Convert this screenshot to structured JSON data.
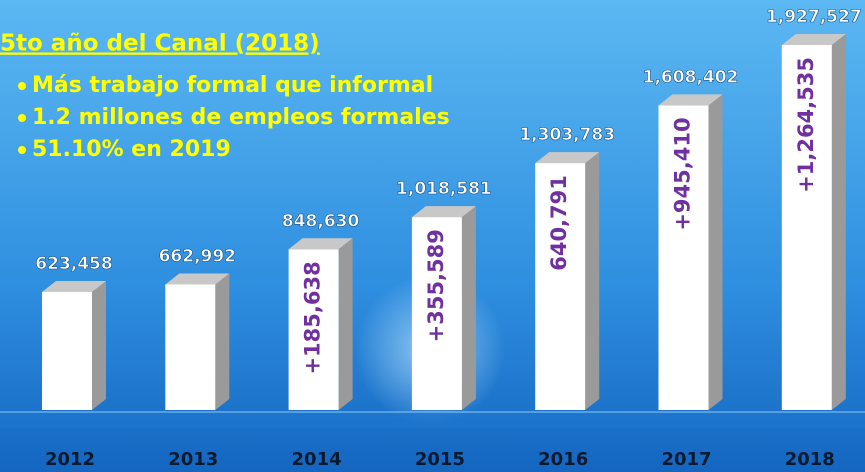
{
  "chart_data": {
    "type": "bar3d",
    "title": "5to año  del Canal (2018)",
    "bullets": [
      "Más trabajo formal que informal",
      "1.2 millones de empleos formales",
      "51.10% en 2019"
    ],
    "categories": [
      "2012",
      "2013",
      "2014",
      "2015",
      "2016",
      "2017",
      "2018"
    ],
    "values": [
      623458,
      662992,
      848630,
      1018581,
      1303783,
      1608402,
      1927527
    ],
    "value_labels": [
      "623,458",
      "662,992",
      "848,630",
      "1,018,581",
      "1,303,783",
      "1,608,402",
      "1,927,527"
    ],
    "inner_labels": [
      null,
      null,
      "+185,638",
      "+355,589",
      "640,791",
      "+945,410",
      "+1,264,535"
    ],
    "color": "#ffffff"
  }
}
